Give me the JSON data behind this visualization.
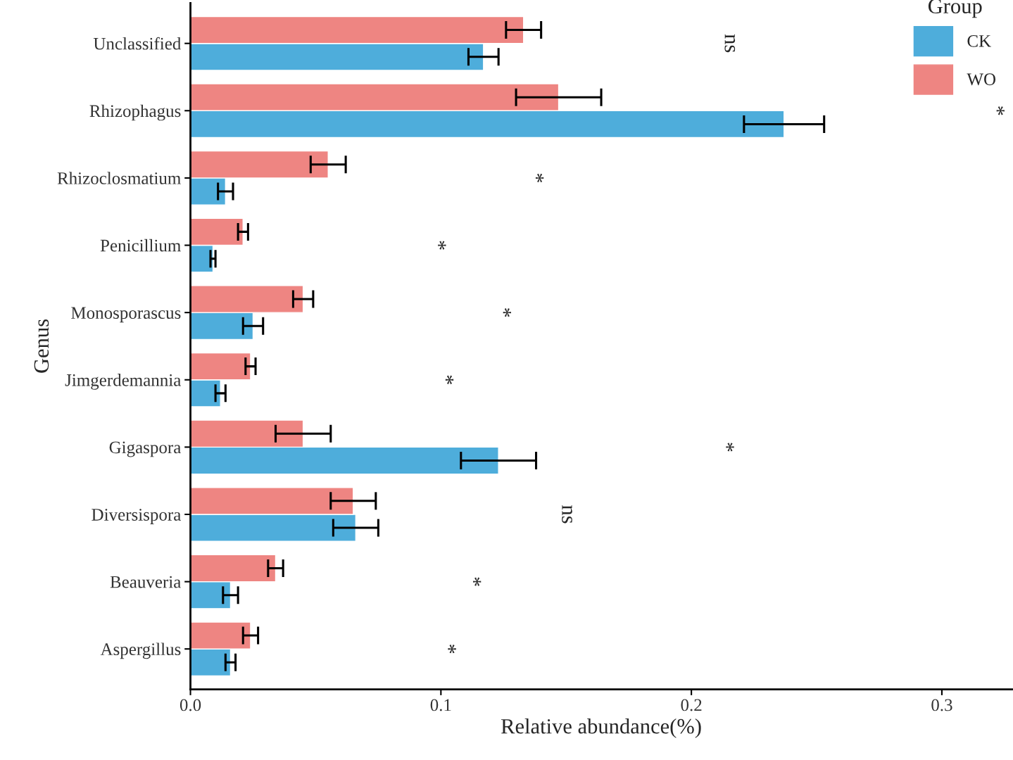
{
  "chart_data": {
    "type": "bar",
    "orientation": "horizontal",
    "xlabel": "Relative abundance(%)",
    "ylabel": "Genus",
    "legend_title": "Group",
    "legend": "top right",
    "grid": false,
    "categories": [
      "Unclassified",
      "Rhizophagus",
      "Rhizoclosmatium",
      "Penicillium",
      "Monosporascus",
      "Jimgerdemannia",
      "Gigaspora",
      "Diversispora",
      "Beauveria",
      "Aspergillus"
    ],
    "series": [
      {
        "name": "CK",
        "color": "#4eaddb",
        "values": [
          0.117,
          0.237,
          0.014,
          0.009,
          0.025,
          0.012,
          0.123,
          0.066,
          0.016,
          0.016
        ],
        "errors": [
          0.006,
          0.016,
          0.003,
          0.001,
          0.004,
          0.002,
          0.015,
          0.009,
          0.003,
          0.002
        ]
      },
      {
        "name": "WO",
        "color": "#ee8582",
        "values": [
          0.133,
          0.147,
          0.055,
          0.021,
          0.045,
          0.024,
          0.045,
          0.065,
          0.034,
          0.024
        ],
        "errors": [
          0.007,
          0.017,
          0.007,
          0.002,
          0.004,
          0.002,
          0.011,
          0.009,
          0.003,
          0.003
        ]
      }
    ],
    "xlim": [
      0.0,
      0.328
    ],
    "xticks": [
      {
        "value": 0,
        "label": "0.0"
      },
      0.1,
      0.2,
      0.3
    ],
    "annotations": [
      "ns",
      "*",
      "*",
      "*",
      "*",
      "*",
      "*",
      "ns",
      "*",
      "*"
    ]
  }
}
